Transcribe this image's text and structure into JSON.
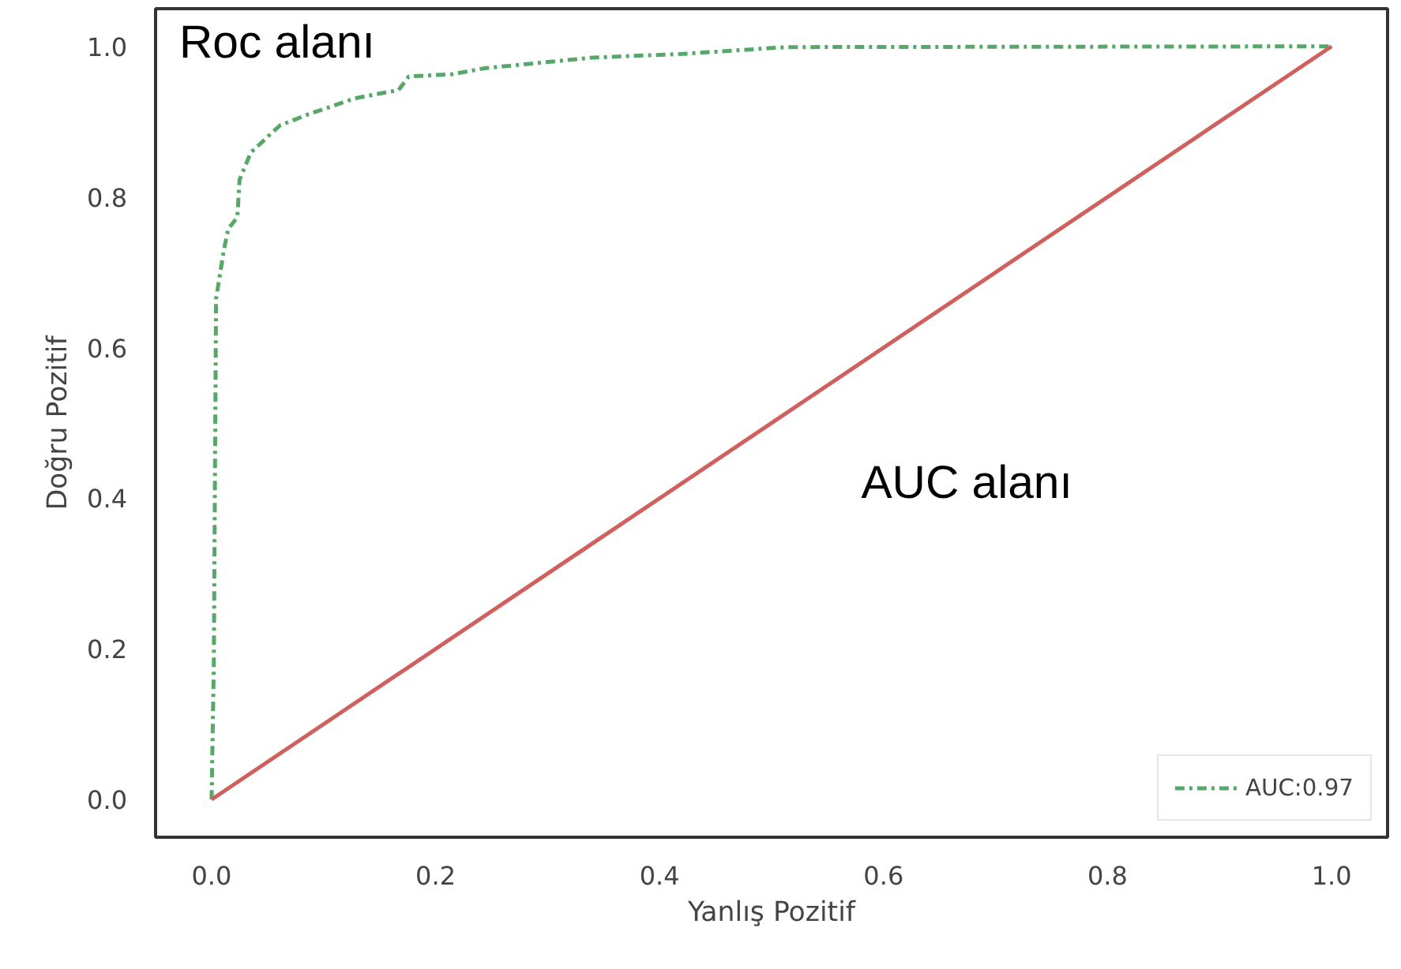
{
  "chart_data": {
    "type": "line",
    "xlabel": "Yanlış Pozitif",
    "ylabel": "Doğru Pozitif",
    "annotations": [
      "Roc alanı",
      "AUC alanı"
    ],
    "xlim": [
      -0.05,
      1.05
    ],
    "ylim": [
      -0.05,
      1.05
    ],
    "xticks": [
      {
        "value": 0,
        "label": "0.0"
      },
      0.2,
      0.4,
      0.6,
      0.8,
      {
        "value": 1,
        "label": "1.0"
      }
    ],
    "yticks": [
      {
        "value": 0,
        "label": "0.0"
      },
      0.2,
      0.4,
      0.6,
      0.8,
      {
        "value": 1,
        "label": "1.0"
      }
    ],
    "grid": false,
    "legend": "bottom right",
    "series": [
      {
        "name": "AUC:0.97",
        "color": "#55a868",
        "line_style": "dashdot",
        "x": [
          0,
          0.002,
          0.004,
          0.011,
          0.015,
          0.023,
          0.025,
          0.035,
          0.061,
          0.085,
          0.128,
          0.167,
          0.176,
          0.215,
          0.244,
          0.34,
          0.421,
          0.513,
          1
        ],
        "values": [
          0,
          0.18,
          0.665,
          0.73,
          0.758,
          0.773,
          0.823,
          0.859,
          0.895,
          0.909,
          0.931,
          0.942,
          0.96,
          0.963,
          0.971,
          0.985,
          0.99,
          0.999,
          1
        ]
      },
      {
        "color": "#d0605e",
        "line_style": "solid",
        "x": [
          0,
          1
        ],
        "values": [
          0,
          1
        ]
      }
    ]
  }
}
